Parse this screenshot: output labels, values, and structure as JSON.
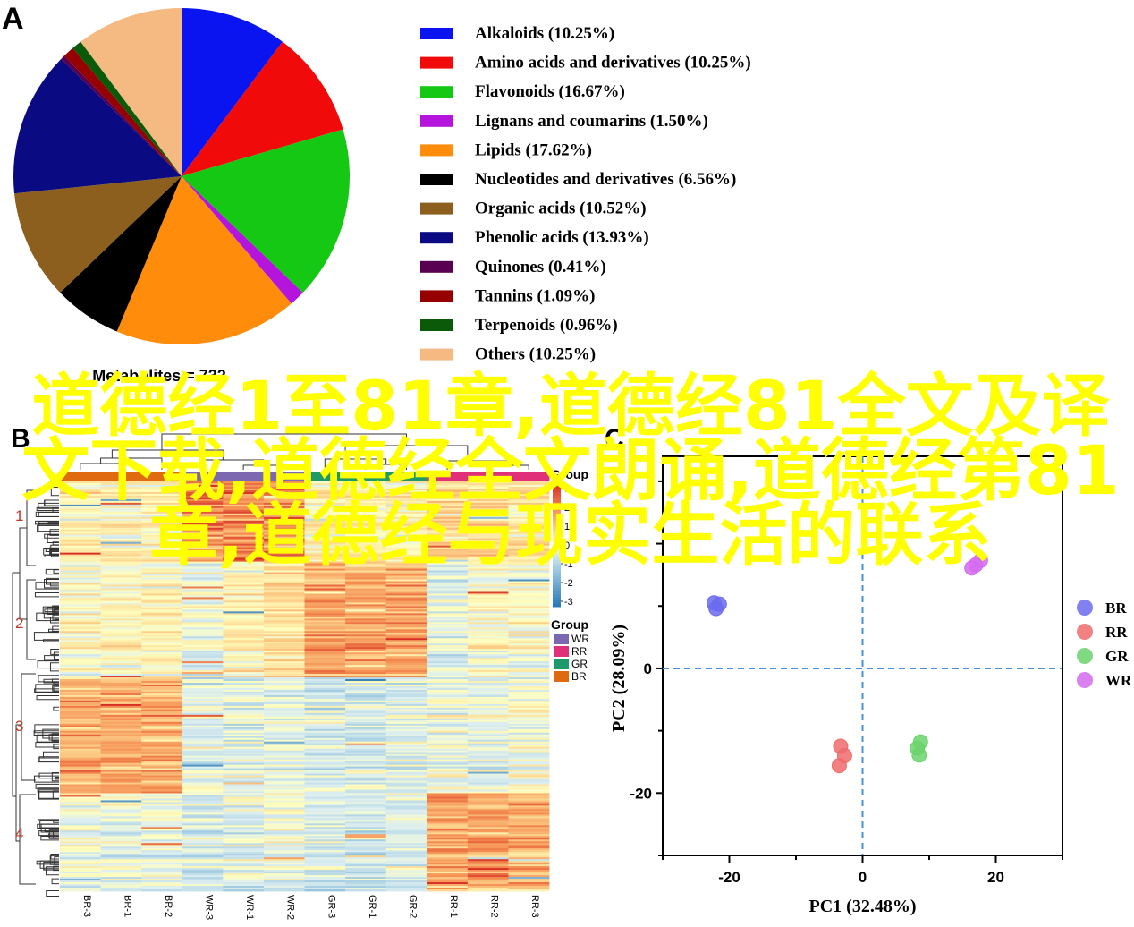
{
  "panels": {
    "a": "A",
    "b": "B",
    "c": "C"
  },
  "overlay_text": "道德经1至81章,道德经81全文及译文下载,道德经全文朗诵,道德经第81章,道德经与现实生活的联系",
  "chart_data": [
    {
      "type": "pie",
      "caption": "Metabolites = 732",
      "slices": [
        {
          "label": "Alkaloids (10.25%)",
          "value": 10.25,
          "color": "#0a14f0"
        },
        {
          "label": "Amino acids and derivatives (10.25%)",
          "value": 10.25,
          "color": "#f00a0a"
        },
        {
          "label": "Flavonoids (16.67%)",
          "value": 16.67,
          "color": "#14c814"
        },
        {
          "label": "Lignans and coumarins (1.50%)",
          "value": 1.5,
          "color": "#b414dc"
        },
        {
          "label": "Lipids (17.62%)",
          "value": 17.62,
          "color": "#ff8c0a"
        },
        {
          "label": "Nucleotides and derivatives (6.56%)",
          "value": 6.56,
          "color": "#000000"
        },
        {
          "label": "Organic acids (10.52%)",
          "value": 10.52,
          "color": "#8c5f1e"
        },
        {
          "label": "Phenolic acids (13.93%)",
          "value": 13.93,
          "color": "#0a0a82"
        },
        {
          "label": "Quinones (0.41%)",
          "value": 0.41,
          "color": "#5a0050"
        },
        {
          "label": "Tannins (1.09%)",
          "value": 1.09,
          "color": "#960000"
        },
        {
          "label": "Terpenoids (0.96%)",
          "value": 0.96,
          "color": "#0a5a0a"
        },
        {
          "label": "Others (10.25%)",
          "value": 10.25,
          "color": "#f5b982"
        }
      ]
    },
    {
      "type": "heatmap",
      "columns": [
        "BR-3",
        "BR-1",
        "BR-2",
        "WR-3",
        "WR-1",
        "WR-2",
        "GR-3",
        "GR-1",
        "GR-2",
        "RR-1",
        "RR-2",
        "RR-3"
      ],
      "column_groups": [
        "BR",
        "BR",
        "BR",
        "WR",
        "WR",
        "WR",
        "GR",
        "GR",
        "GR",
        "RR",
        "RR",
        "RR"
      ],
      "clusters": [
        "1",
        "2",
        "3",
        "4"
      ],
      "color_scale": {
        "ticks": [
          "3",
          "2",
          "1",
          "0",
          "-1",
          "-2",
          "-3"
        ],
        "max": 3,
        "min": -3
      },
      "legend_title": "Group",
      "group_legend": [
        {
          "label": "WR",
          "color": "#7b68b0"
        },
        {
          "label": "RR",
          "color": "#e0307a"
        },
        {
          "label": "GR",
          "color": "#1e9a6a"
        },
        {
          "label": "BR",
          "color": "#e06a10"
        }
      ],
      "cluster_profiles": [
        [
          0.3,
          0.2,
          0.2,
          2.0,
          2.2,
          2.0,
          0.1,
          0.2,
          0.1,
          0.8,
          0.6,
          0.5
        ],
        [
          0.1,
          0.1,
          0.2,
          -0.2,
          0.3,
          0.6,
          1.6,
          1.4,
          1.5,
          -0.3,
          0.1,
          0.0
        ],
        [
          1.5,
          1.6,
          1.4,
          -0.4,
          -0.4,
          -0.3,
          -0.6,
          -0.5,
          -0.4,
          -0.2,
          -0.3,
          -0.1
        ],
        [
          -0.2,
          -0.3,
          -0.3,
          -0.5,
          -0.3,
          -0.2,
          -0.5,
          -0.6,
          -0.4,
          1.6,
          1.7,
          1.6
        ]
      ]
    },
    {
      "type": "scatter",
      "xlabel": "PC1 (32.48%)",
      "ylabel": "PC2 (28.09%)",
      "xlim": [
        -30,
        30
      ],
      "ylim": [
        -30,
        34
      ],
      "xticks": [
        "-20",
        "0",
        "20"
      ],
      "yticks": [
        "-20",
        "0"
      ],
      "series": [
        {
          "name": "BR",
          "color": "#6b6bf0",
          "points": [
            [
              -22.3,
              10.5
            ],
            [
              -21.5,
              10.3
            ],
            [
              -22.0,
              9.6
            ]
          ]
        },
        {
          "name": "RR",
          "color": "#f06b6b",
          "points": [
            [
              -3.3,
              -12.5
            ],
            [
              -2.7,
              -14.0
            ],
            [
              -3.5,
              -15.6
            ]
          ]
        },
        {
          "name": "GR",
          "color": "#6bd46b",
          "points": [
            [
              8.7,
              -11.8
            ],
            [
              8.2,
              -12.8
            ],
            [
              8.5,
              -13.9
            ]
          ]
        },
        {
          "name": "WR",
          "color": "#d46bf0",
          "points": [
            [
              17.7,
              17.3
            ],
            [
              17.0,
              16.6
            ],
            [
              16.4,
              16.1
            ]
          ]
        }
      ]
    }
  ]
}
